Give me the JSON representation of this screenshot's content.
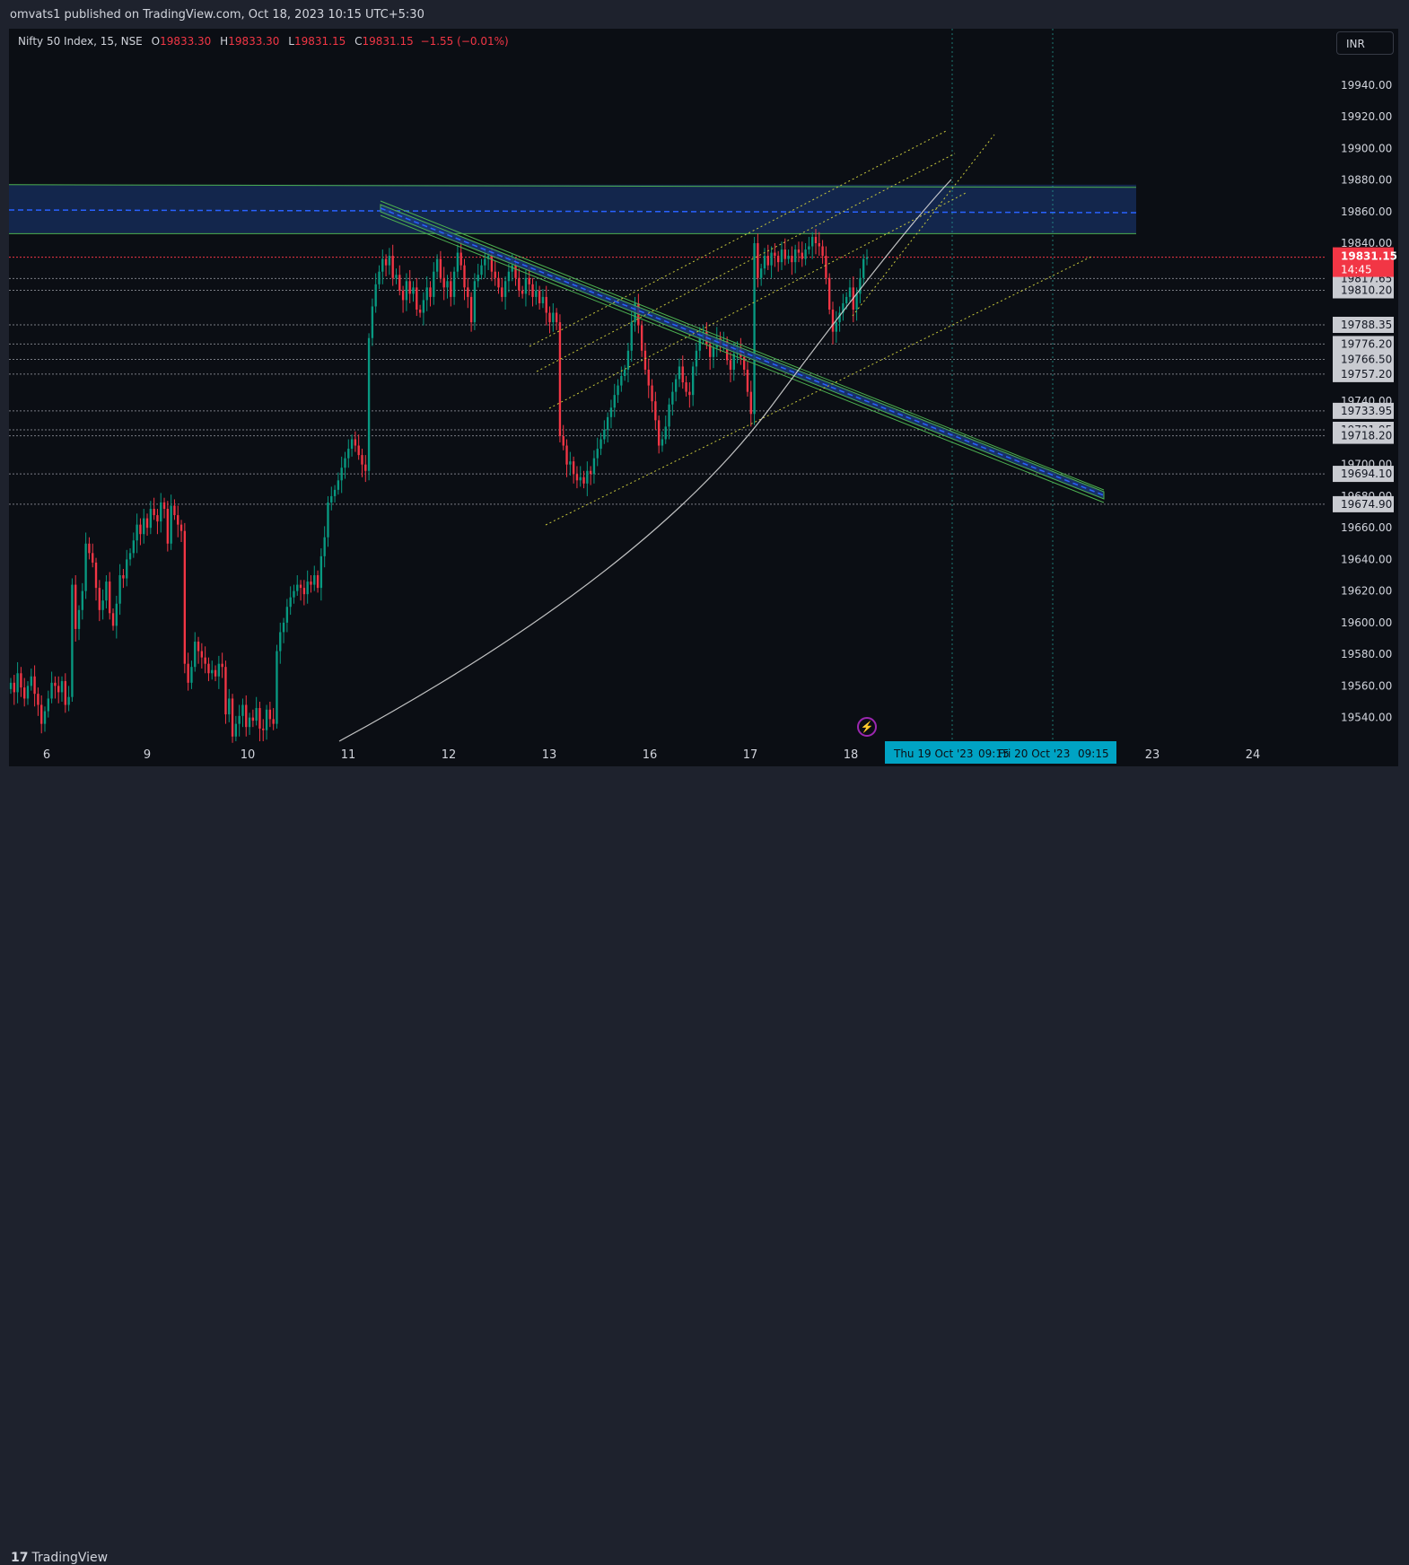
{
  "publisher": "omvats1 published on TradingView.com, Oct 18, 2023 10:15 UTC+5:30",
  "legend": {
    "symbol": "Nifty 50 Index, 15, NSE",
    "o_label": "O",
    "o": "19833.30",
    "h_label": "H",
    "h": "19833.30",
    "l_label": "L",
    "l": "19831.15",
    "c_label": "C",
    "c": "19831.15",
    "change": "−1.55 (−0.01%)"
  },
  "currency": "INR",
  "brand": "TradingView",
  "colors": {
    "up": "#089981",
    "down": "#f23645",
    "zone": "#1c3a7a",
    "channel": "#c8c83c",
    "trend": "#4caf50",
    "price": "#f23645"
  },
  "chart_data": {
    "type": "candlestick",
    "symbol": "Nifty 50 Index",
    "interval": "15",
    "exchange": "NSE",
    "ylim": [
      19528,
      19965
    ],
    "y_ticks": [
      "19940.00",
      "19920.00",
      "19900.00",
      "19880.00",
      "19860.00",
      "19840.00",
      "19740.00",
      "19700.00",
      "19680.00",
      "19660.00",
      "19640.00",
      "19620.00",
      "19600.00",
      "19580.00",
      "19560.00",
      "19540.00"
    ],
    "x_ticks": [
      "6",
      "9",
      "10",
      "11",
      "12",
      "13",
      "16",
      "17",
      "18",
      "23",
      "24"
    ],
    "last_price": {
      "value": "19831.15",
      "countdown": "14:45"
    },
    "price_labels": [
      "19817.65",
      "19810.20",
      "19788.35",
      "19776.20",
      "19766.50",
      "19757.20",
      "19733.95",
      "19721.95",
      "19718.20",
      "19694.10",
      "19674.90"
    ],
    "time_labels": [
      "Thu 19 Oct '23",
      "09:15",
      "Fri 20 Oct '23",
      "09:15"
    ],
    "zone": {
      "top": 19877,
      "mid": 19861,
      "bottom": 19846
    },
    "series_close": [
      19562,
      19556,
      19568,
      19559,
      19552,
      19560,
      19566,
      19555,
      19548,
      19536,
      19544,
      19552,
      19562,
      19560,
      19556,
      19563,
      19548,
      19553,
      19624,
      19596,
      19608,
      19620,
      19650,
      19644,
      19638,
      19622,
      19608,
      19614,
      19626,
      19606,
      19598,
      19612,
      19630,
      19628,
      19640,
      19644,
      19652,
      19662,
      19656,
      19666,
      19660,
      19672,
      19668,
      19664,
      19676,
      19672,
      19650,
      19674,
      19668,
      19662,
      19658,
      19574,
      19562,
      19572,
      19588,
      19582,
      19578,
      19574,
      19568,
      19570,
      19566,
      19574,
      19572,
      19542,
      19552,
      19528,
      19536,
      19541,
      19548,
      19534,
      19540,
      19538,
      19546,
      19533,
      19532,
      19545,
      19539,
      19536,
      19582,
      19594,
      19600,
      19610,
      19616,
      19620,
      19624,
      19622,
      19618,
      19626,
      19624,
      19630,
      19622,
      19642,
      19654,
      19676,
      19680,
      19684,
      19690,
      19698,
      19704,
      19710,
      19716,
      19712,
      19706,
      19700,
      19696,
      19780,
      19800,
      19814,
      19822,
      19830,
      19826,
      19832,
      19818,
      19820,
      19810,
      19804,
      19816,
      19808,
      19812,
      19798,
      19796,
      19804,
      19812,
      19806,
      19822,
      19830,
      19818,
      19812,
      19816,
      19806,
      19822,
      19834,
      19826,
      19812,
      19806,
      19790,
      19816,
      19820,
      19826,
      19830,
      19832,
      19822,
      19818,
      19812,
      19806,
      19816,
      19822,
      19826,
      19818,
      19810,
      19808,
      19818,
      19814,
      19806,
      19810,
      19802,
      19806,
      19796,
      19790,
      19796,
      19790,
      19718,
      19712,
      19700,
      19702,
      19694,
      19690,
      19692,
      19688,
      19696,
      19694,
      19704,
      19710,
      19716,
      19722,
      19730,
      19736,
      19744,
      19750,
      19756,
      19760,
      19772,
      19790,
      19802,
      19788,
      19772,
      19760,
      19750,
      19740,
      19728,
      19712,
      19716,
      19724,
      19738,
      19746,
      19754,
      19762,
      19752,
      19746,
      19744,
      19762,
      19772,
      19780,
      19784,
      19776,
      19768,
      19774,
      19780,
      19776,
      19778,
      19766,
      19760,
      19770,
      19774,
      19768,
      19760,
      19746,
      19732,
      19840,
      19818,
      19824,
      19832,
      19826,
      19834,
      19832,
      19828,
      19836,
      19830,
      19832,
      19828,
      19836,
      19834,
      19830,
      19836,
      19838,
      19844,
      19840,
      19838,
      19832,
      19818,
      19798,
      19784,
      19790,
      19796,
      19802,
      19806,
      19812,
      19798,
      19808,
      19818,
      19830,
      19831.15
    ]
  }
}
